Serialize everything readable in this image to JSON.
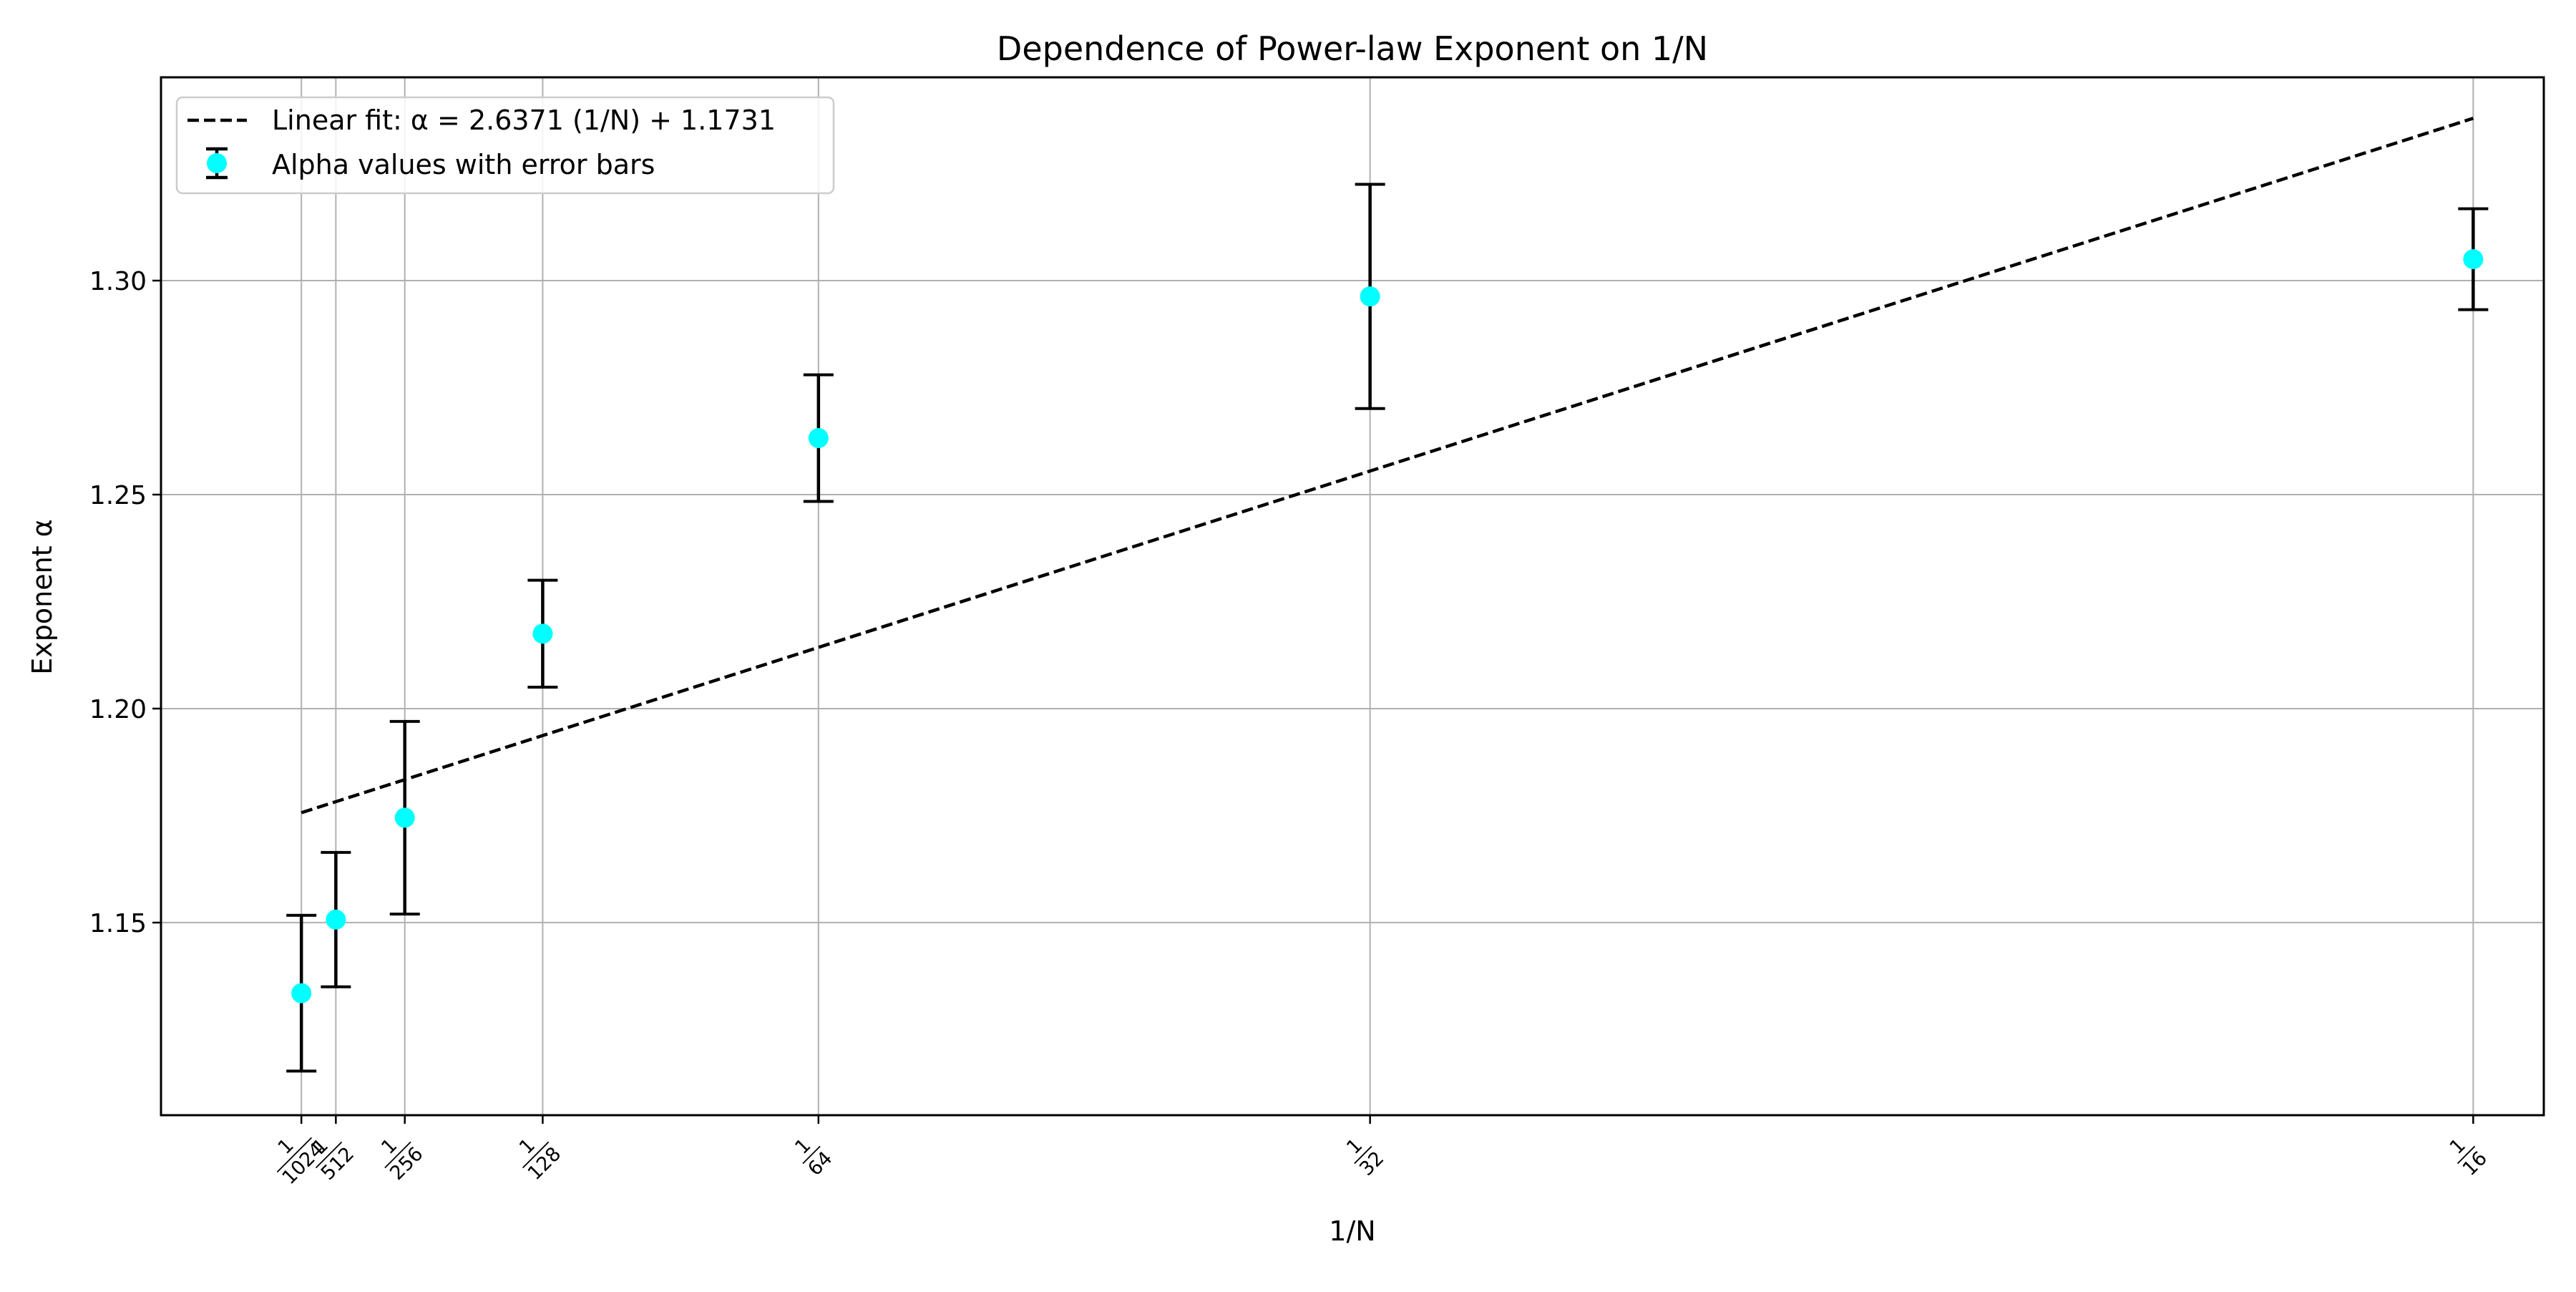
{
  "chart_data": {
    "type": "scatter",
    "title": "Dependence of Power-law Exponent on 1/N",
    "xlabel": "1/N",
    "ylabel": "Exponent α",
    "xlim": [
      -0.003,
      0.0645
    ],
    "ylim": [
      1.105,
      1.3475
    ],
    "grid": true,
    "legend_position": "upper-left",
    "x_tick_labels": [
      {
        "x": 0.0009765625,
        "num": "1",
        "den": "1024"
      },
      {
        "x": 0.001953125,
        "num": "1",
        "den": "512"
      },
      {
        "x": 0.00390625,
        "num": "1",
        "den": "256"
      },
      {
        "x": 0.0078125,
        "num": "1",
        "den": "128"
      },
      {
        "x": 0.015625,
        "num": "1",
        "den": "64"
      },
      {
        "x": 0.03125,
        "num": "1",
        "den": "32"
      },
      {
        "x": 0.0625,
        "num": "1",
        "den": "16"
      }
    ],
    "y_ticks": [
      1.15,
      1.2,
      1.25,
      1.3
    ],
    "y_tick_labels": [
      "1.15",
      "1.20",
      "1.25",
      "1.30"
    ],
    "series": [
      {
        "name": "Alpha values with error bars",
        "kind": "errorbar",
        "color": "#00ffff",
        "x": [
          0.0009765625,
          0.001953125,
          0.00390625,
          0.0078125,
          0.015625,
          0.03125,
          0.0625
        ],
        "y": [
          1.1335,
          1.1507,
          1.1745,
          1.2175,
          1.2632,
          1.2963,
          1.305
        ],
        "yerr": [
          0.0182,
          0.0157,
          0.0225,
          0.0125,
          0.0148,
          0.0262,
          0.0118
        ]
      },
      {
        "name": "Linear fit: α = 2.6371 (1/N) + 1.1731",
        "kind": "line",
        "style": "dashed",
        "color": "#000000",
        "slope": 2.6371,
        "intercept": 1.1731,
        "x_range": [
          0.0009765625,
          0.0625
        ]
      }
    ]
  }
}
